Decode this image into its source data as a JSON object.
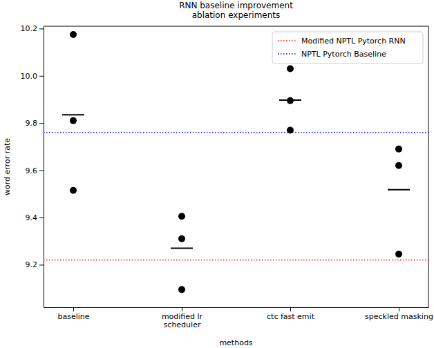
{
  "chart_data": {
    "type": "strip",
    "title": "RNN baseline improvement\nablation experiments",
    "x_label": "methods",
    "y_label": "word error rate",
    "categories": [
      "baseline",
      "modified lr\nscheduler",
      "ctc fast emit",
      "speckled masking"
    ],
    "points": [
      [
        10.175,
        9.81,
        9.515
      ],
      [
        9.405,
        9.31,
        9.095
      ],
      [
        10.03,
        9.895,
        9.77
      ],
      [
        9.69,
        9.62,
        9.245
      ]
    ],
    "means": [
      9.835,
      9.27,
      9.897,
      9.518
    ],
    "color": "#000000",
    "reference_lines": [
      {
        "name": "Modified NPTL Pytorch RNN",
        "value": 9.22,
        "color": "#ff0000",
        "line_style": "dotted"
      },
      {
        "name": "NPTL Pytorch Baseline",
        "value": 9.76,
        "color": "#0000ff",
        "line_style": "dotted"
      }
    ],
    "ylim": [
      9.02,
      10.21
    ],
    "yticks": [
      9.2,
      9.4,
      9.6,
      9.8,
      {
        "value": 10,
        "label": "10.0"
      },
      10.2
    ],
    "grid": false,
    "legend": "upper right"
  }
}
